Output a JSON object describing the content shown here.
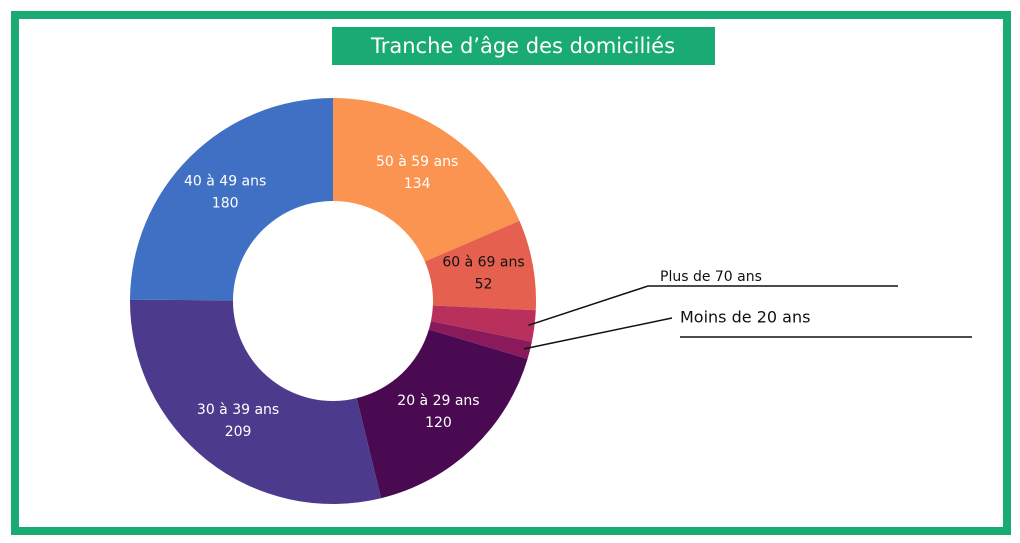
{
  "chart_data": {
    "type": "donut",
    "title": "Tranche d’âge des domiciliés",
    "categories": [
      "50 à 59 ans",
      "60 à 69 ans",
      "Plus de 70 ans",
      "Moins de 20 ans",
      "20 à 29 ans",
      "30 à 39 ans",
      "40 à 49 ans"
    ],
    "values": [
      134,
      52,
      18,
      10,
      120,
      209,
      180
    ],
    "colors": [
      "#fb9351",
      "#e5604e",
      "#b8305b",
      "#8a1a5c",
      "#4a0a52",
      "#4c3b8c",
      "#4070c4"
    ],
    "label_colors": [
      "#ffffff",
      "#111111",
      "#111111",
      "#111111",
      "#ffffff",
      "#ffffff",
      "#ffffff"
    ]
  }
}
